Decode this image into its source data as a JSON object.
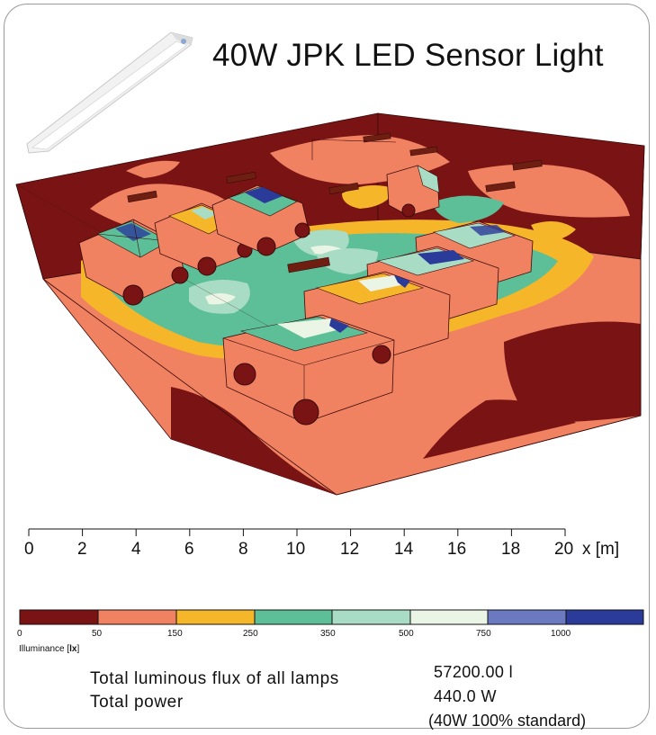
{
  "title": "40W JPK LED Sensor Light",
  "scale_bar": {
    "ticks": [
      "0",
      "2",
      "4",
      "6",
      "8",
      "10",
      "12",
      "14",
      "16",
      "18",
      "20"
    ],
    "unit": "x [m]"
  },
  "colorbar": {
    "title_prefix": "Illuminance [",
    "title_unit": "lx",
    "title_suffix": "]",
    "ticks": [
      "0",
      "50",
      "150",
      "250",
      "350",
      "500",
      "750",
      "1000"
    ],
    "colors": [
      "#7a1414",
      "#f08262",
      "#f5b62a",
      "#5cbf98",
      "#a9dcc4",
      "#eaf5e6",
      "#6a79c0",
      "#2a3b9a"
    ]
  },
  "stats": {
    "flux_label": "Total luminous flux of all lamps",
    "flux_value": "57200.00 l",
    "power_label": "Total power",
    "power_value": "440.0 W",
    "note": "(40W 100% standard)"
  },
  "scene": {
    "zone_colors": {
      "wall": "#7a1414",
      "floor": "#f08262",
      "yellow": "#f5b62a",
      "green": "#5cbf98",
      "pale_green": "#a9dcc4",
      "white": "#eaf5e6",
      "blue": "#2a3b9a",
      "luminaire": "#6e1f12",
      "outline": "#3a0a0a"
    }
  }
}
